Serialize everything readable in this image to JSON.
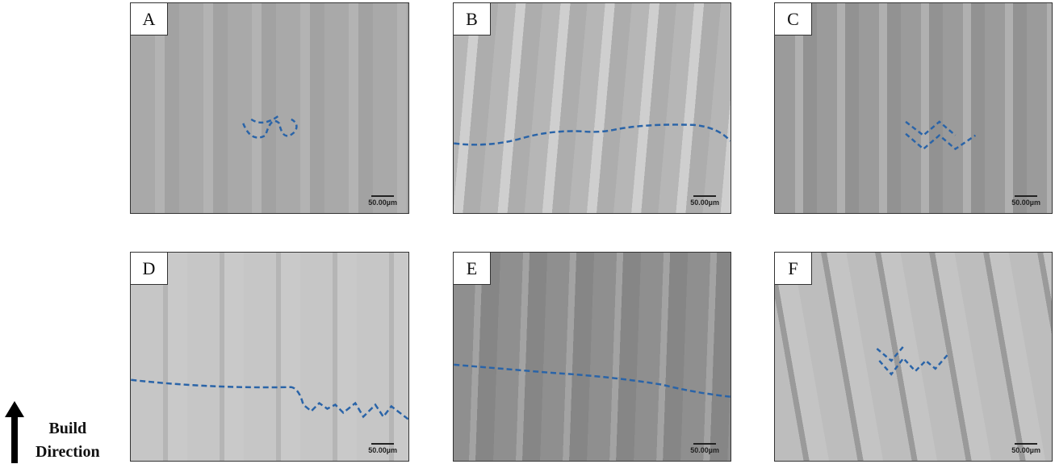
{
  "panels": [
    {
      "label": "A",
      "scale_bar": "50.00µm",
      "color": "#a9a9a9"
    },
    {
      "label": "B",
      "scale_bar": "50.00µm",
      "color": "#b6b6b6"
    },
    {
      "label": "C",
      "scale_bar": "50.00µm",
      "color": "#9b9b9b"
    },
    {
      "label": "D",
      "scale_bar": "50.00µm",
      "color": "#c6c6c6"
    },
    {
      "label": "E",
      "scale_bar": "50.00µm",
      "color": "#8f8f8f"
    },
    {
      "label": "F",
      "scale_bar": "50.00µm",
      "color": "#bdbdbd"
    }
  ],
  "boundary_line_color": "#2a64a8",
  "build_direction": {
    "line1": "Build",
    "line2": "Direction",
    "icon": "arrow-up-icon"
  }
}
